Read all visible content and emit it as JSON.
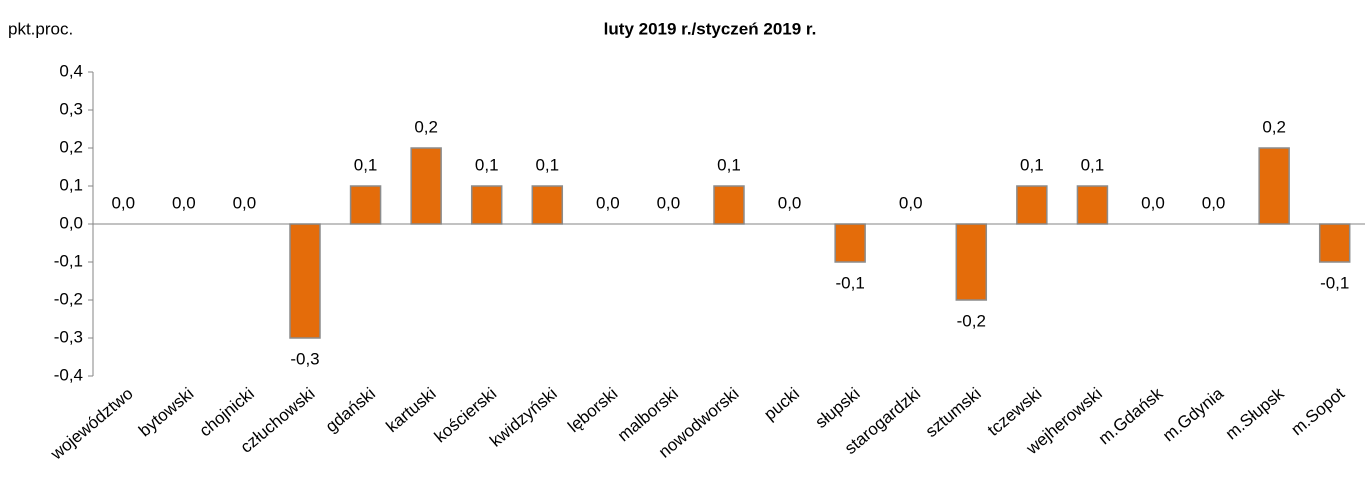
{
  "chart_data": {
    "type": "bar",
    "title": "luty 2019 r./styczeń 2019 r.",
    "y_label": "pkt.proc.",
    "categories": [
      "województwo",
      "bytowski",
      "chojnicki",
      "człuchowski",
      "gdański",
      "kartuski",
      "kościerski",
      "kwidzyński",
      "lęborski",
      "malborski",
      "nowodworski",
      "pucki",
      "słupski",
      "starogardzki",
      "sztumski",
      "tczewski",
      "wejherowski",
      "m.Gdańsk",
      "m.Gdynia",
      "m.Słupsk",
      "m.Sopot"
    ],
    "values": [
      0,
      0,
      0,
      -0.3,
      0.1,
      0.2,
      0.1,
      0.1,
      0,
      0,
      0.1,
      0,
      -0.1,
      0,
      -0.2,
      0.1,
      0.1,
      0,
      0,
      0.2,
      -0.1
    ],
    "value_labels": [
      "0,0",
      "0,0",
      "0,0",
      "-0,3",
      "0,1",
      "0,2",
      "0,1",
      "0,1",
      "0,0",
      "0,0",
      "0,1",
      "0,0",
      "-0,1",
      "0,0",
      "-0,2",
      "0,1",
      "0,1",
      "0,0",
      "0,0",
      "0,2",
      "-0,1"
    ],
    "color": "#e46c0a",
    "ylim": [
      -0.4,
      0.4
    ],
    "yticks": [
      {
        "value": -0.4,
        "label": "-0,4"
      },
      {
        "value": -0.3,
        "label": "-0,3"
      },
      {
        "value": -0.2,
        "label": "-0,2"
      },
      {
        "value": -0.1,
        "label": "-0,1"
      },
      {
        "value": 0,
        "label": "0,0"
      },
      {
        "value": 0.1,
        "label": "0,1"
      },
      {
        "value": 0.2,
        "label": "0,2"
      },
      {
        "value": 0.3,
        "label": "0,3"
      },
      {
        "value": 0.4,
        "label": "0,4"
      }
    ],
    "grid": false
  }
}
